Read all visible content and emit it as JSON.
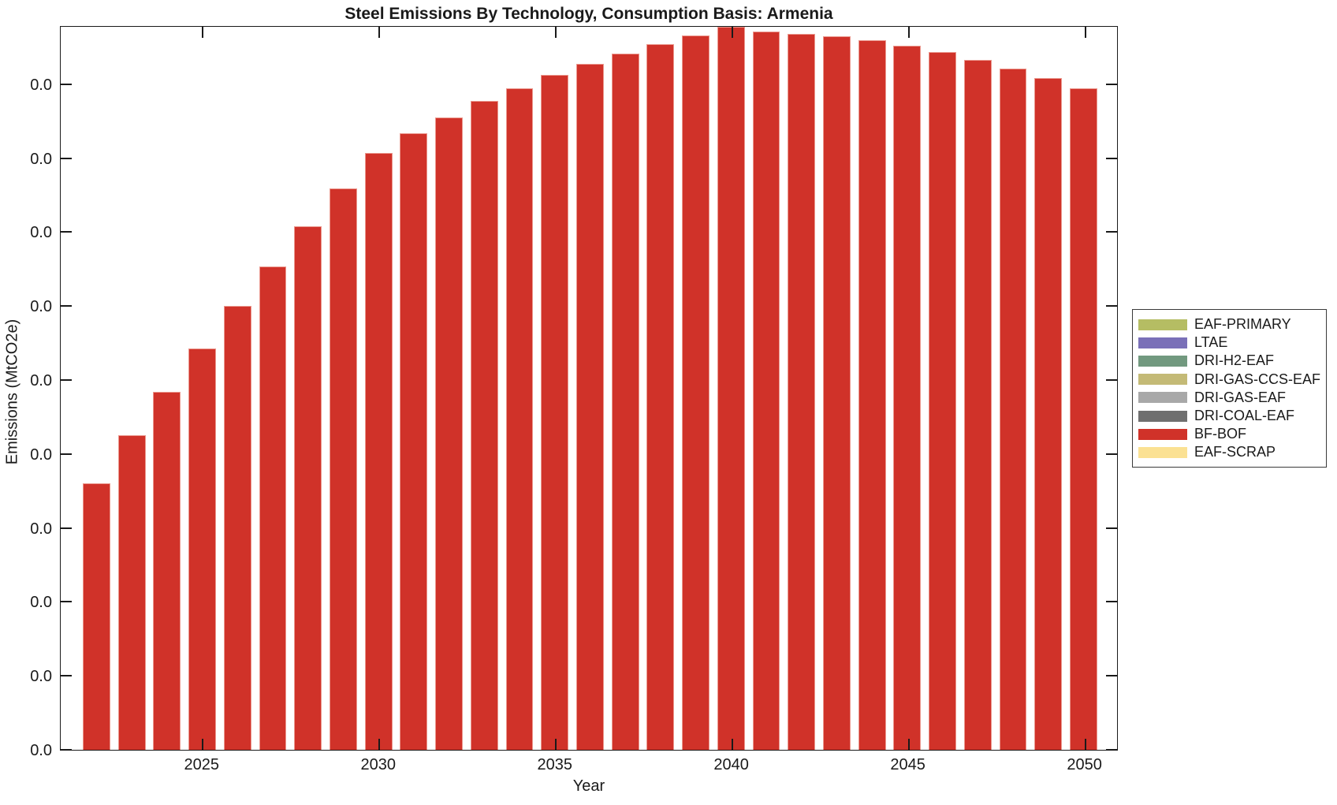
{
  "title": "Steel Emissions By Technology, Consumption Basis: Armenia",
  "axes": {
    "x_label": "Year",
    "y_label": "Emissions (MtCO2e)",
    "y_tick_labels": [
      "0.0",
      "0.0",
      "0.0",
      "0.0",
      "0.0",
      "0.0",
      "0.0",
      "0.0",
      "0.0",
      "0.0"
    ],
    "x_tick_labels": [
      "2025",
      "2030",
      "2035",
      "2040",
      "2045",
      "2050"
    ],
    "x_tick_years": [
      2025,
      2030,
      2035,
      2040,
      2045,
      2050
    ]
  },
  "legend": {
    "items": [
      {
        "label": "EAF-PRIMARY",
        "color": "#b5bd63"
      },
      {
        "label": "LTAE",
        "color": "#7a70b8"
      },
      {
        "label": "DRI-H2-EAF",
        "color": "#72997f"
      },
      {
        "label": "DRI-GAS-CCS-EAF",
        "color": "#c4ba76"
      },
      {
        "label": "DRI-GAS-EAF",
        "color": "#a8a8a8"
      },
      {
        "label": "DRI-COAL-EAF",
        "color": "#6f6f6f"
      },
      {
        "label": "BF-BOF",
        "color": "#d03229"
      },
      {
        "label": "EAF-SCRAP",
        "color": "#fbe193"
      }
    ]
  },
  "chart_data": {
    "type": "bar",
    "stacked": true,
    "title": "Steel Emissions By Technology, Consumption Basis: Armenia",
    "xlabel": "Year",
    "ylabel": "Emissions (MtCO2e)",
    "x": [
      2022,
      2023,
      2024,
      2025,
      2026,
      2027,
      2028,
      2029,
      2030,
      2031,
      2032,
      2033,
      2034,
      2035,
      2036,
      2037,
      2038,
      2039,
      2040,
      2041,
      2042,
      2043,
      2044,
      2045,
      2046,
      2047,
      2048,
      2049,
      2050
    ],
    "series": [
      {
        "name": "BF-BOF",
        "color": "#d03229",
        "values_fraction_of_max": [
          0.369,
          0.435,
          0.495,
          0.555,
          0.614,
          0.669,
          0.724,
          0.777,
          0.826,
          0.853,
          0.875,
          0.897,
          0.915,
          0.933,
          0.949,
          0.963,
          0.976,
          0.988,
          1.0,
          0.994,
          0.99,
          0.987,
          0.981,
          0.974,
          0.965,
          0.954,
          0.942,
          0.929,
          0.915
        ]
      }
    ],
    "peak_year": 2040,
    "y_axis_note": "All ten y-axis tick labels render as 0.0 (absolute magnitudes too small to read from axis); bar values given as fraction of the 2040 maximum",
    "visible_series_note": "Only BF-BOF bars are visible; other legend technologies contribute ~zero height",
    "x_tick_years": [
      2025,
      2030,
      2035,
      2040,
      2045,
      2050
    ],
    "legend_position": "outside-right",
    "grid": false
  }
}
